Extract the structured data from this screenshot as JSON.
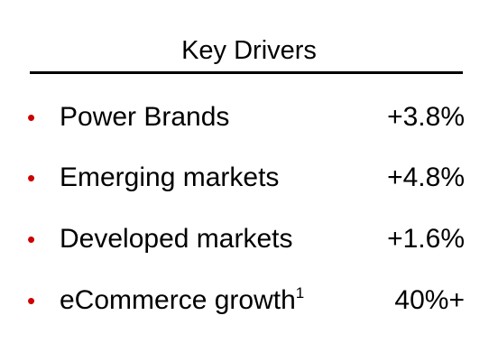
{
  "title": "Key Drivers",
  "items": [
    {
      "label": "Power Brands",
      "value": "+3.8%"
    },
    {
      "label": "Emerging markets",
      "value": "+4.8%"
    },
    {
      "label": "Developed markets",
      "value": "+1.6%"
    },
    {
      "label": "eCommerce growth",
      "footnote": "1",
      "value": "40%+"
    }
  ]
}
